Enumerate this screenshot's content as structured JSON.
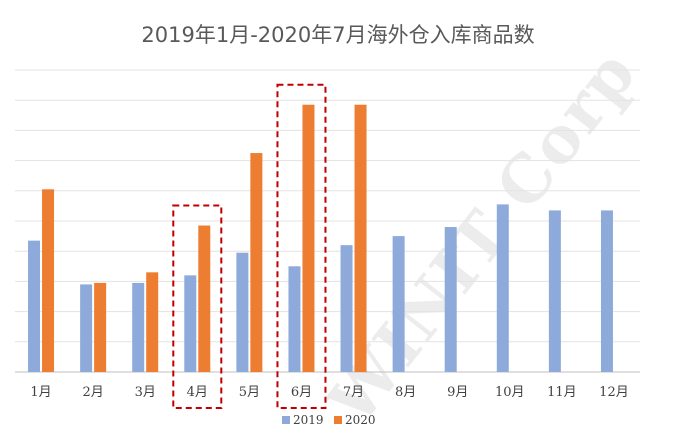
{
  "watermark": "WINIT Corp",
  "chart_data": {
    "type": "bar",
    "title": "2019年1月-2020年7月海外仓入库商品数",
    "categories": [
      "1月",
      "2月",
      "3月",
      "4月",
      "5月",
      "6月",
      "7月",
      "8月",
      "9月",
      "10月",
      "11月",
      "12月"
    ],
    "series": [
      {
        "name": "2019",
        "color": "#8eaadb",
        "values": [
          4.35,
          2.9,
          2.95,
          3.2,
          3.95,
          3.5,
          4.2,
          4.5,
          4.8,
          5.55,
          5.35,
          5.35
        ]
      },
      {
        "name": "2020",
        "color": "#ed7d31",
        "values": [
          6.05,
          2.95,
          3.3,
          4.85,
          7.25,
          8.85,
          8.85,
          null,
          null,
          null,
          null,
          null
        ]
      }
    ],
    "ylim": [
      0,
      10
    ],
    "grid": true,
    "highlighted_categories": [
      "4月",
      "6月"
    ],
    "legend_position": "bottom"
  }
}
